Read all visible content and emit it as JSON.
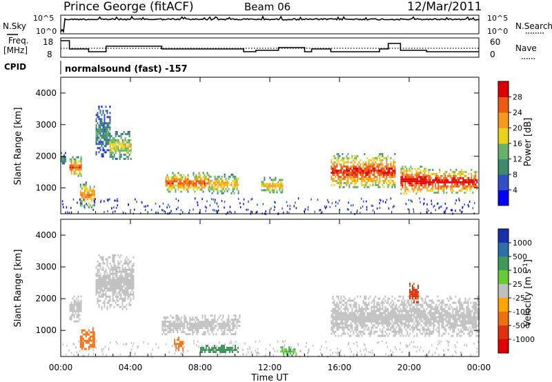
{
  "header": {
    "station": "Prince George (fitACF)",
    "beam": "Beam 06",
    "date": "12/Mar/2011"
  },
  "time_axis": {
    "label": "Time UT",
    "ticks": [
      "00:00",
      "04:00",
      "08:00",
      "12:00",
      "16:00",
      "20:00",
      "00:00"
    ],
    "range_hours": [
      0,
      24
    ]
  },
  "params": {
    "nsky_label": "N.Sky",
    "nsky_ticks": [
      "10^5",
      "10^0"
    ],
    "nsearch_label": "N.Search",
    "freq_label": "Freq.",
    "freq_unit": "[MHz]",
    "freq_ticks": [
      "18",
      "8"
    ],
    "nave_label": "Nave",
    "nave_ticks": [
      "60",
      "0"
    ],
    "cpid_label": "CPID",
    "cpid_text": "normalsound (fast) -157"
  },
  "power_panel": {
    "ylabel": "Slant Range [km]",
    "yticks": [
      "1000",
      "2000",
      "3000",
      "4000"
    ],
    "colorbar_label": "Power [dB]",
    "colorbar_ticks": [
      "4",
      "8",
      "12",
      "16",
      "20",
      "24",
      "28"
    ],
    "colors": [
      "#0000ff",
      "#2e4fc8",
      "#3d8a6f",
      "#66b266",
      "#e8d21a",
      "#f59a1c",
      "#ee5a12",
      "#e00000"
    ]
  },
  "velocity_panel": {
    "ylabel": "Slant Range [km]",
    "yticks": [
      "1000",
      "2000",
      "3000",
      "4000"
    ],
    "colorbar_label": "Velocity [m s",
    "colorbar_sup": "-1",
    "colorbar_close": "]",
    "colorbar_ticks": [
      "1000",
      "500",
      "100",
      "25",
      "-25",
      "-100",
      "-500",
      "-1000"
    ],
    "colors": [
      "#1a2fb0",
      "#2d6fa8",
      "#3f9a5a",
      "#66cc33",
      "#c0c0c0",
      "#ffa500",
      "#f07010",
      "#e03010",
      "#e00000"
    ]
  },
  "chart_data": {
    "type": "heatmap",
    "x_unit": "hours UT",
    "y_range_km": [
      180,
      4500
    ],
    "frequency_mhz": [
      {
        "t": [
          0.0,
          0.5
        ],
        "value": 18
      },
      {
        "t": [
          0.5,
          1.6
        ],
        "value": 12
      },
      {
        "t": [
          1.6,
          2.6
        ],
        "value": 10
      },
      {
        "t": [
          2.6,
          5.8
        ],
        "value": 14
      },
      {
        "t": [
          5.8,
          10.5
        ],
        "value": 12
      },
      {
        "t": [
          10.5,
          11.2
        ],
        "value": 10
      },
      {
        "t": [
          11.2,
          12.5
        ],
        "value": 11
      },
      {
        "t": [
          12.5,
          14.0
        ],
        "value": 13
      },
      {
        "t": [
          14.0,
          14.4
        ],
        "value": 10
      },
      {
        "t": [
          14.4,
          15.5
        ],
        "value": 12
      },
      {
        "t": [
          15.5,
          18.3
        ],
        "value": 10
      },
      {
        "t": [
          18.3,
          18.8
        ],
        "value": 12
      },
      {
        "t": [
          18.8,
          19.5
        ],
        "value": 16
      },
      {
        "t": [
          19.5,
          21.0
        ],
        "value": 11
      },
      {
        "t": [
          21.0,
          24.0
        ],
        "value": 10
      }
    ],
    "power_regions_db": [
      {
        "t": [
          0.0,
          0.3
        ],
        "range_km": [
          1700,
          2200
        ],
        "value": 8
      },
      {
        "t": [
          0.5,
          1.2
        ],
        "range_km": [
          1350,
          2000
        ],
        "value": 20
      },
      {
        "t": [
          1.1,
          1.9
        ],
        "range_km": [
          400,
          1200
        ],
        "value": 18
      },
      {
        "t": [
          2.0,
          2.8
        ],
        "range_km": [
          2000,
          3600
        ],
        "value": 8
      },
      {
        "t": [
          2.8,
          4.0
        ],
        "range_km": [
          1900,
          2800
        ],
        "value": 14
      },
      {
        "t": [
          6.0,
          8.5
        ],
        "range_km": [
          900,
          1500
        ],
        "value": 20
      },
      {
        "t": [
          8.5,
          10.2
        ],
        "range_km": [
          850,
          1450
        ],
        "value": 16
      },
      {
        "t": [
          11.5,
          12.7
        ],
        "range_km": [
          850,
          1350
        ],
        "value": 16
      },
      {
        "t": [
          15.5,
          19.2
        ],
        "range_km": [
          1000,
          2100
        ],
        "value": 22
      },
      {
        "t": [
          19.5,
          21.0
        ],
        "range_km": [
          800,
          1700
        ],
        "value": 24
      },
      {
        "t": [
          21.0,
          23.9
        ],
        "range_km": [
          850,
          1600
        ],
        "value": 24
      }
    ],
    "velocity_regions_ms": [
      {
        "t": [
          0.5,
          1.2
        ],
        "range_km": [
          1300,
          2100
        ],
        "value": 0
      },
      {
        "t": [
          1.1,
          1.9
        ],
        "range_km": [
          400,
          1100
        ],
        "value": -200
      },
      {
        "t": [
          2.0,
          4.2
        ],
        "range_km": [
          1700,
          3400
        ],
        "value": 0
      },
      {
        "t": [
          5.8,
          10.3
        ],
        "range_km": [
          900,
          1500
        ],
        "value": 0
      },
      {
        "t": [
          6.5,
          7.0
        ],
        "range_km": [
          400,
          800
        ],
        "value": -150
      },
      {
        "t": [
          8.0,
          10.2
        ],
        "range_km": [
          300,
          550
        ],
        "value": 200
      },
      {
        "t": [
          12.6,
          13.5
        ],
        "range_km": [
          200,
          500
        ],
        "value": 100
      },
      {
        "t": [
          15.5,
          24.0
        ],
        "range_km": [
          800,
          2100
        ],
        "value": 0
      },
      {
        "t": [
          20.0,
          20.5
        ],
        "range_km": [
          1900,
          2500
        ],
        "value": -600
      }
    ]
  }
}
